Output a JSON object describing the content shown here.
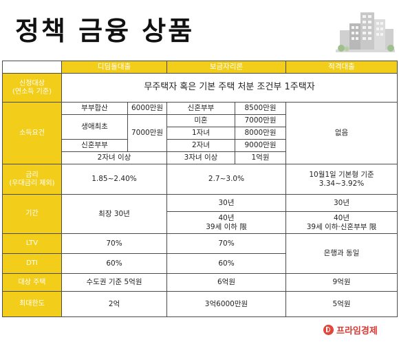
{
  "title": "정책 금융 상품",
  "logo": "프라임경제",
  "colors": {
    "accent": "#f2cd1a",
    "logo": "#d63a32"
  },
  "columns": [
    "디딤돌대출",
    "보금자리론",
    "적격대출"
  ],
  "rows": {
    "applicant": {
      "label_line1": "신청대상",
      "label_line2": "(연소득 기준)",
      "value": "무주택자 혹은 기본 주택 처분 조건부 1주택자"
    },
    "income": {
      "label": "소득요건",
      "didim": {
        "r1_type": "부부합산",
        "r1_amount": "6000만원",
        "r2_type": "생애최초",
        "r34_amount": "7000만원",
        "r4_type": "신혼부부",
        "r5_type": "2자녀 이상"
      },
      "bogeum": [
        {
          "type": "신혼부부",
          "amount": "8500만원"
        },
        {
          "type": "미혼",
          "amount": "7000만원"
        },
        {
          "type": "1자녀",
          "amount": "8000만원"
        },
        {
          "type": "2자녀",
          "amount": "9000만원"
        },
        {
          "type": "3자녀 이상",
          "amount": "1억원"
        }
      ],
      "jeokgyeok": "없음"
    },
    "rate": {
      "label_line1": "금리",
      "label_line2": "(우대금리 제외)",
      "didim": "1.85~2.40%",
      "bogeum": "2.7~3.0%",
      "jeok_line1": "10월1일 기본형 기준",
      "jeok_line2": "3.34~3.92%"
    },
    "period": {
      "label": "기간",
      "didim": "최장 30년",
      "bogeum_a": "30년",
      "bogeum_b1": "40년",
      "bogeum_b2": "39세 이하 限",
      "jeok_a": "30년",
      "jeok_b1": "40년",
      "jeok_b2": "39세 이하·신혼부부 限"
    },
    "ltv": {
      "label": "LTV",
      "didim": "70%",
      "bogeum": "70%"
    },
    "dti": {
      "label": "DTI",
      "didim": "60%",
      "bogeum": "60%"
    },
    "bank_same": "은행과 동일",
    "target": {
      "label": "대상 주택",
      "didim": "수도권 기준 5억원",
      "bogeum": "6억원",
      "jeok": "9억원"
    },
    "limit": {
      "label": "최대한도",
      "didim": "2억",
      "bogeum": "3억6000만원",
      "jeok": "5억원"
    }
  }
}
